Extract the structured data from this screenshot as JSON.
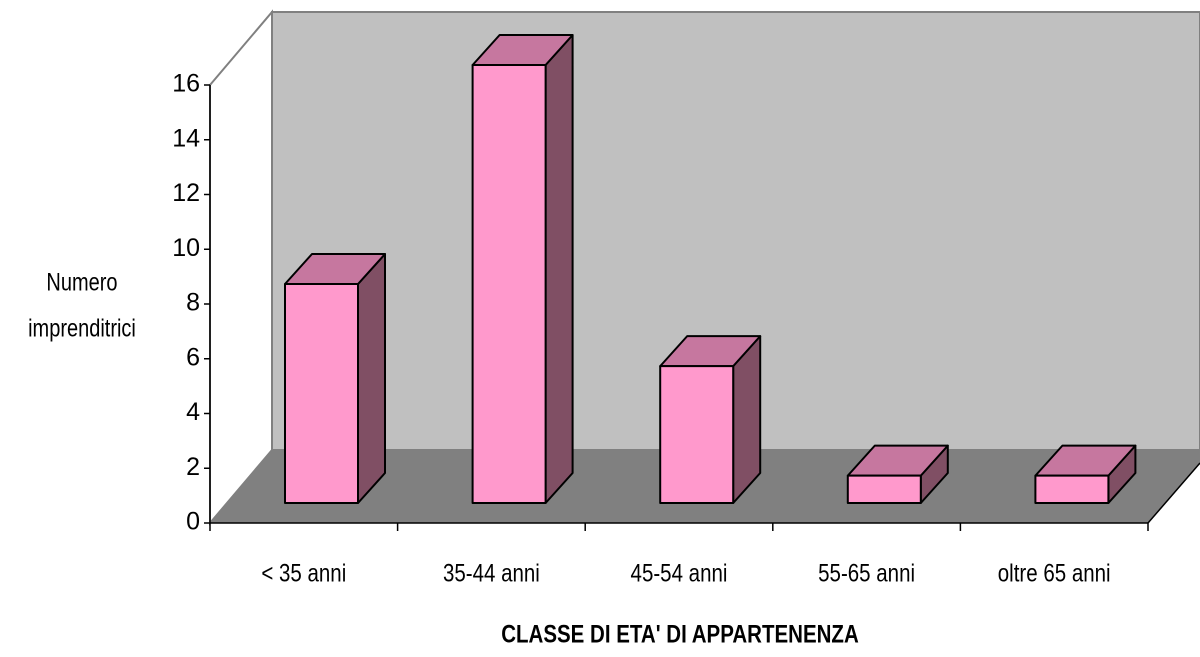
{
  "chart_data": {
    "type": "bar3d",
    "xlabel": "CLASSE DI ETA' DI APPARTENENZA",
    "ylabel_lines": [
      "Numero",
      "imprenditrici"
    ],
    "categories": [
      "< 35 anni",
      "35-44 anni",
      "45-54 anni",
      "55-65 anni",
      "oltre 65 anni"
    ],
    "values": [
      8,
      16,
      5,
      1,
      1
    ],
    "color": "#ff99cc",
    "top_color": "#c6779f",
    "side_color": "#804f64",
    "wall_color": "#c0c0c0",
    "floor_color": "#808080",
    "ylim": [
      0,
      16
    ],
    "yticks": [
      0,
      2,
      4,
      6,
      8,
      10,
      12,
      14,
      16
    ]
  }
}
